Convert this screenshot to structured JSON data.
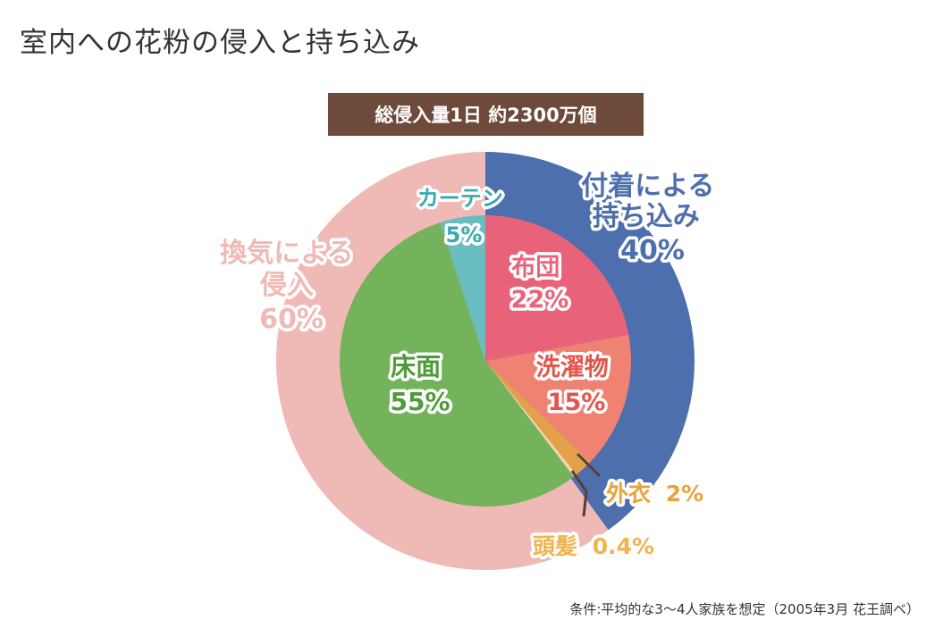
{
  "title": "室内への花粉の侵入と持ち込み",
  "banner": "総侵入量1日 約2300万個",
  "footnote": "条件:平均的な3～4人家族を想定（2005年3月  花王調べ）",
  "chart_data": [
    {
      "type": "pie",
      "ring": "outer",
      "slices": [
        {
          "label_lines": [
            "付着による",
            "持ち込み"
          ],
          "value": 40,
          "value_text": "40%",
          "color": "#4e6fae",
          "label_color": "#4e6fae"
        },
        {
          "label_lines": [
            "換気による",
            "侵入"
          ],
          "value": 60,
          "value_text": "60%",
          "color": "#efb9b5",
          "label_color": "#efb9b5"
        }
      ]
    },
    {
      "type": "pie",
      "ring": "inner",
      "slices": [
        {
          "label_lines": [
            "布団"
          ],
          "value": 22,
          "value_text": "22%",
          "color": "#e8637a",
          "label_color": "#e8637a"
        },
        {
          "label_lines": [
            "洗濯物"
          ],
          "value": 15,
          "value_text": "15%",
          "color": "#ef8273",
          "label_color": "#e3554a"
        },
        {
          "label_lines": [
            "外衣"
          ],
          "value": 2,
          "value_text": "2%",
          "color": "#e3a24a",
          "label_color": "#eba23a"
        },
        {
          "label_lines": [
            "頭髪"
          ],
          "value": 0.4,
          "value_text": "0.4%",
          "color": "#f6d6a5",
          "label_color": "#f0b450"
        },
        {
          "label_lines": [
            "床面"
          ],
          "value": 55,
          "value_text": "55%",
          "color": "#74b25c",
          "label_color": "#4f9a3a"
        },
        {
          "label_lines": [
            "カーテン"
          ],
          "value": 5,
          "value_text": "5%",
          "color": "#69bcc0",
          "label_color": "#3aa9ad"
        }
      ]
    }
  ],
  "colors": {
    "title": "#333333",
    "banner_bg": "#6e4a3b",
    "banner_text": "#ffffff",
    "leader": "#5a3e32"
  }
}
